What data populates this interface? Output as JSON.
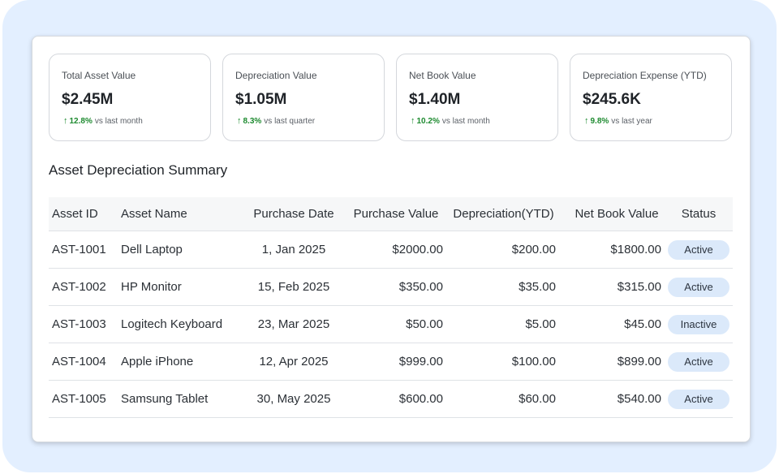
{
  "cards": [
    {
      "title": "Total Asset Value",
      "value": "$2.45M",
      "trend_pct": "12.8%",
      "trend_text": "vs last month"
    },
    {
      "title": "Depreciation Value",
      "value": "$1.05M",
      "trend_pct": "8.3%",
      "trend_text": "vs last quarter"
    },
    {
      "title": "Net Book Value",
      "value": "$1.40M",
      "trend_pct": "10.2%",
      "trend_text": "vs last month"
    },
    {
      "title": "Depreciation Expense (YTD)",
      "value": "$245.6K",
      "trend_pct": "9.8%",
      "trend_text": "vs last year"
    }
  ],
  "section_title": "Asset Depreciation Summary",
  "table": {
    "headers": [
      "Asset ID",
      "Asset Name",
      "Purchase Date",
      "Purchase Value",
      "Depreciation(YTD)",
      "Net Book Value",
      "Status"
    ],
    "rows": [
      [
        "AST-1001",
        "Dell Laptop",
        "1, Jan 2025",
        "$2000.00",
        "$200.00",
        "$1800.00",
        "Active"
      ],
      [
        "AST-1002",
        "HP Monitor",
        "15, Feb 2025",
        "$350.00",
        "$35.00",
        "$315.00",
        "Active"
      ],
      [
        "AST-1003",
        "Logitech Keyboard",
        "23, Mar 2025",
        "$50.00",
        "$5.00",
        "$45.00",
        "Inactive"
      ],
      [
        "AST-1004",
        "Apple iPhone",
        "12, Apr 2025",
        "$999.00",
        "$100.00",
        "$899.00",
        "Active"
      ],
      [
        "AST-1005",
        "Samsung Tablet",
        "30, May 2025",
        "$600.00",
        "$60.00",
        "$540.00",
        "Active"
      ]
    ]
  },
  "icons": {
    "trend": "arrow-up-icon"
  },
  "colors": {
    "trend_up": "#1d8a2f",
    "badge_bg": "#dbe9fa",
    "background": "#e3efff"
  }
}
